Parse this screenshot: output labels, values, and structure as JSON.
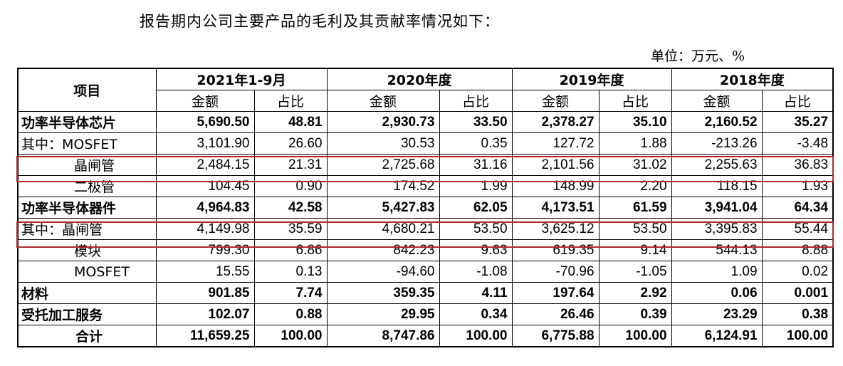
{
  "intro_text": "报告期内公司主要产品的毛利及其贡献率情况如下：",
  "unit_text": "单位：万元、%",
  "table": {
    "item_header": "项目",
    "periods": [
      "2021年1-9月",
      "2020年度",
      "2019年度",
      "2018年度"
    ],
    "sub_headers": [
      "金额",
      "占比",
      "金额",
      "占比",
      "金额",
      "占比",
      "金额",
      "占比"
    ],
    "rows": [
      {
        "label": "功率半导体芯片",
        "values": [
          "5,690.50",
          "48.81",
          "2,930.73",
          "33.50",
          "2,378.27",
          "35.10",
          "2,160.52",
          "35.27"
        ]
      },
      {
        "label": "其中：MOSFET",
        "values": [
          "3,101.90",
          "26.60",
          "30.53",
          "0.35",
          "127.72",
          "1.88",
          "-213.26",
          "-3.48"
        ]
      },
      {
        "label": "晶闸管",
        "values": [
          "2,484.15",
          "21.31",
          "2,725.68",
          "31.16",
          "2,101.56",
          "31.02",
          "2,255.63",
          "36.83"
        ]
      },
      {
        "label": "二极管",
        "values": [
          "104.45",
          "0.90",
          "174.52",
          "1.99",
          "148.99",
          "2.20",
          "118.15",
          "1.93"
        ]
      },
      {
        "label": "功率半导体器件",
        "values": [
          "4,964.83",
          "42.58",
          "5,427.83",
          "62.05",
          "4,173.51",
          "61.59",
          "3,941.04",
          "64.34"
        ]
      },
      {
        "label": "其中：晶闸管",
        "values": [
          "4,149.98",
          "35.59",
          "4,680.21",
          "53.50",
          "3,625.12",
          "53.50",
          "3,395.83",
          "55.44"
        ]
      },
      {
        "label": "模块",
        "values": [
          "799.30",
          "6.86",
          "842.23",
          "9.63",
          "619.35",
          "9.14",
          "544.13",
          "8.88"
        ]
      },
      {
        "label": "MOSFET",
        "values": [
          "15.55",
          "0.13",
          "-94.60",
          "-1.08",
          "-70.96",
          "-1.05",
          "1.09",
          "0.02"
        ]
      },
      {
        "label": "材料",
        "values": [
          "901.85",
          "7.74",
          "359.35",
          "4.11",
          "197.64",
          "2.92",
          "0.06",
          "0.001"
        ]
      },
      {
        "label": "受托加工服务",
        "values": [
          "102.07",
          "0.88",
          "29.95",
          "0.34",
          "26.46",
          "0.39",
          "23.29",
          "0.38"
        ]
      },
      {
        "label": "合计",
        "values": [
          "11,659.25",
          "100.00",
          "8,747.86",
          "100.00",
          "6,775.88",
          "100.00",
          "6,124.91",
          "100.00"
        ]
      }
    ]
  },
  "highlight_color": "#b02a2a"
}
